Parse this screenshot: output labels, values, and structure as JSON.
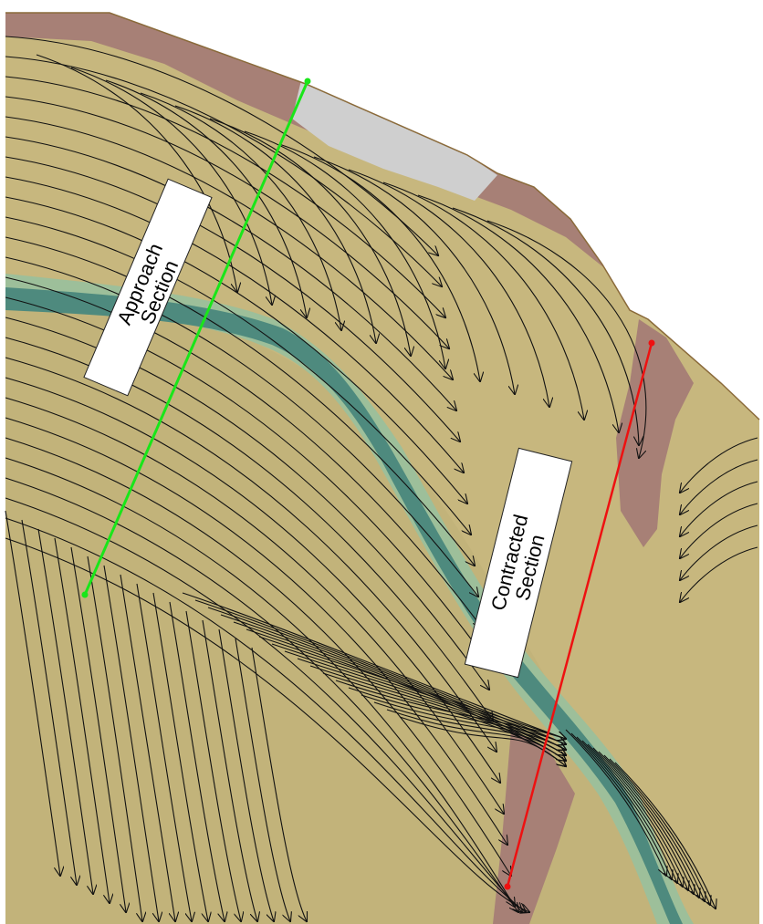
{
  "map": {
    "colors": {
      "background": "#ffffff",
      "floodplain": "#c7b77e",
      "floodplain_dark": "#b4a86f",
      "highground": "#a78076",
      "highground_light": "#cfcfcf",
      "channel": "#4e8a7e",
      "channel_edge": "#9dbf9a",
      "streamline": "#111111",
      "approach_line": "#19e619",
      "contracted_line": "#ee1111"
    },
    "labels": {
      "approach": [
        "Approach",
        "Section"
      ],
      "contracted": [
        "Contracted",
        "Section"
      ]
    },
    "legend": "none"
  }
}
